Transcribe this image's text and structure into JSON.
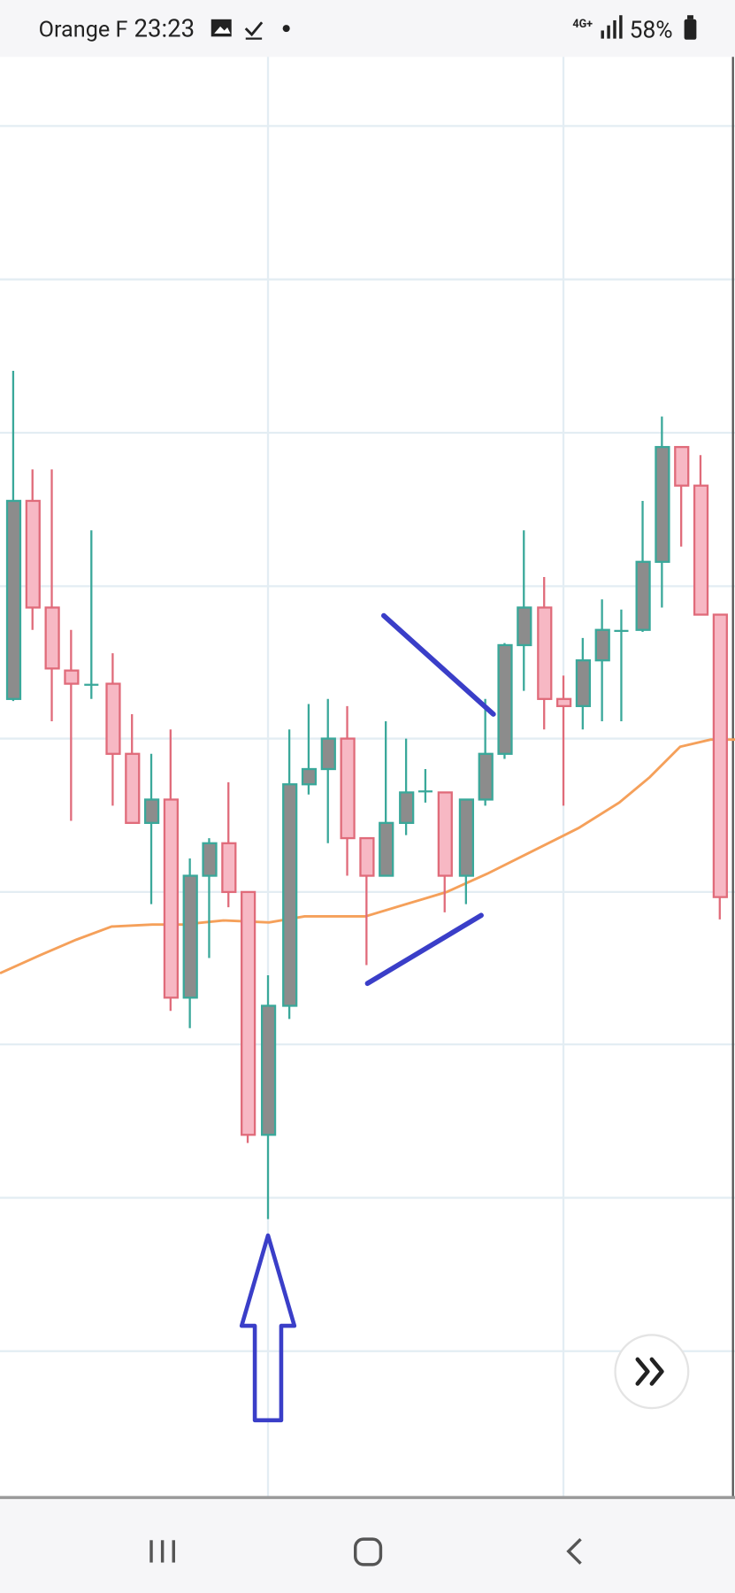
{
  "status_bar": {
    "carrier": "Orange F",
    "time": "23:23",
    "network": "4G+",
    "battery": "58%"
  }
}
